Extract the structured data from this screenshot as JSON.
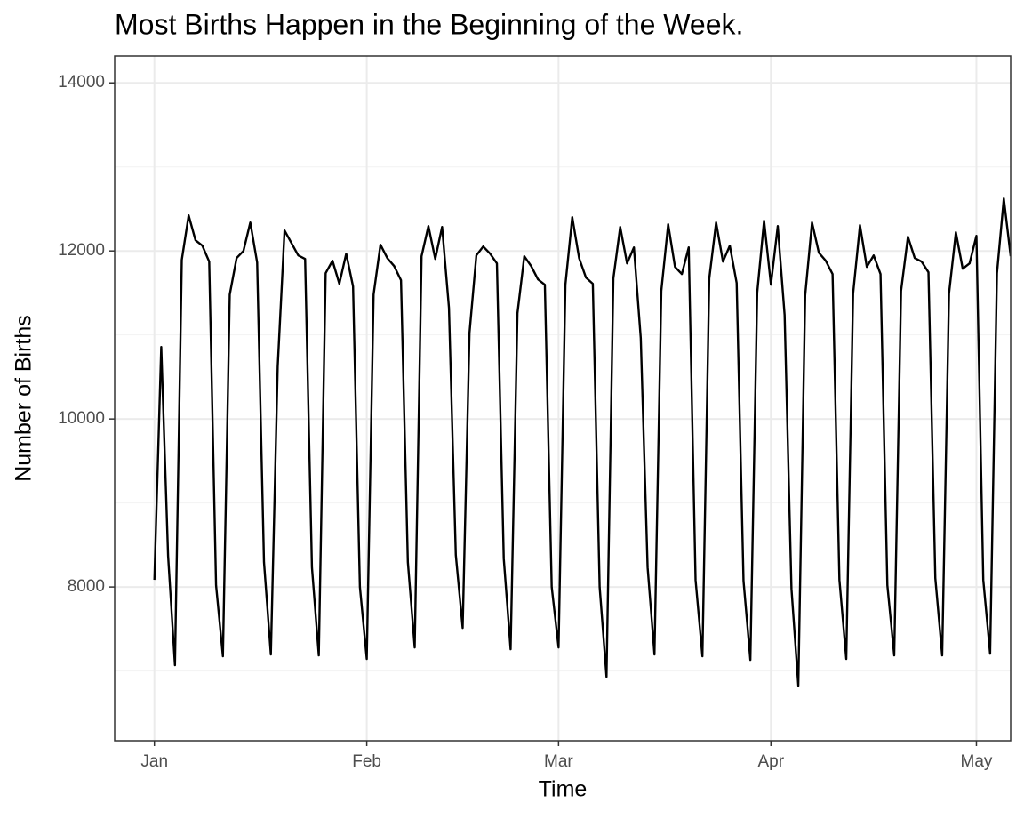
{
  "chart_data": {
    "type": "line",
    "title": "Most Births Happen in the Beginning of the Week.",
    "x_label": "Time",
    "y_label": "Number of Births",
    "x": [
      0,
      1,
      2,
      3,
      4,
      5,
      6,
      7,
      8,
      9,
      10,
      11,
      12,
      13,
      14,
      15,
      16,
      17,
      18,
      19,
      20,
      21,
      22,
      23,
      24,
      25,
      26,
      27,
      28,
      29,
      30,
      31,
      32,
      33,
      34,
      35,
      36,
      37,
      38,
      39,
      40,
      41,
      42,
      43,
      44,
      45,
      46,
      47,
      48,
      49,
      50,
      51,
      52,
      53,
      54,
      55,
      56,
      57,
      58,
      59,
      60,
      61,
      62,
      63,
      64,
      65,
      66,
      67,
      68,
      69,
      70,
      71,
      72,
      73,
      74,
      75,
      76,
      77,
      78,
      79,
      80,
      81,
      82,
      83,
      84,
      85,
      86,
      87,
      88,
      89,
      90,
      91,
      92,
      93,
      94,
      95,
      96,
      97,
      98,
      99,
      100,
      101,
      102,
      103,
      104,
      105,
      106,
      107,
      108,
      109,
      110,
      111,
      112,
      113,
      114,
      115,
      116,
      117,
      118,
      119,
      120,
      121,
      122,
      123,
      124,
      125
    ],
    "series": [
      {
        "name": "Births",
        "color": "#000000",
        "values": [
          8085,
          10857,
          8370,
          7069,
          11894,
          12423,
          12127,
          12063,
          11873,
          8021,
          7175,
          11481,
          11915,
          12000,
          12339,
          11862,
          8296,
          7196,
          10624,
          12244,
          12095,
          11947,
          11905,
          8233,
          7185,
          11735,
          11884,
          11609,
          11968,
          11577,
          8000,
          7143,
          11481,
          12074,
          11915,
          11820,
          11651,
          8296,
          7280,
          11937,
          12296,
          11905,
          12286,
          11323,
          8381,
          7513,
          11026,
          11947,
          12053,
          11968,
          11852,
          8339,
          7259,
          11259,
          11937,
          11820,
          11661,
          11598,
          8000,
          7280,
          11598,
          12402,
          11915,
          11683,
          11609,
          8000,
          6931,
          11672,
          12286,
          11852,
          12042,
          10963,
          8233,
          7196,
          11524,
          12317,
          11810,
          11725,
          12042,
          8085,
          7175,
          11672,
          12339,
          11873,
          12063,
          11619,
          8074,
          7132,
          11503,
          12360,
          11598,
          12296,
          11238,
          7979,
          6825,
          11471,
          12339,
          11979,
          11884,
          11725,
          8085,
          7143,
          11492,
          12307,
          11810,
          11947,
          11725,
          8021,
          7185,
          11524,
          12169,
          11915,
          11873,
          11746,
          8106,
          7185,
          11492,
          12222,
          11788,
          11852,
          12180,
          8085,
          7206,
          11735,
          12624,
          11937
        ]
      }
    ],
    "xlim": [
      -5.8,
      125
    ],
    "xticks": [
      {
        "value": 0,
        "label": "Jan"
      },
      {
        "value": 31,
        "label": "Feb"
      },
      {
        "value": 59,
        "label": "Mar"
      },
      {
        "value": 90,
        "label": "Apr"
      },
      {
        "value": 120,
        "label": "May"
      }
    ],
    "ylim": [
      6170,
      14320
    ],
    "yticks": [
      8000,
      10000,
      12000,
      14000
    ],
    "yminor": [
      7000,
      9000,
      11000,
      13000
    ],
    "grid": true
  }
}
